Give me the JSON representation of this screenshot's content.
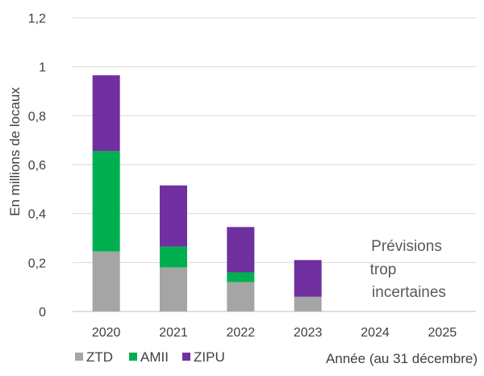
{
  "chart_data": {
    "type": "bar",
    "stacked": true,
    "categories": [
      "2020",
      "2021",
      "2022",
      "2023",
      "2024",
      "2025"
    ],
    "series": [
      {
        "name": "ZTD",
        "values": [
          0.245,
          0.18,
          0.12,
          0.06,
          null,
          null
        ],
        "color": "#a5a5a5"
      },
      {
        "name": "AMII",
        "values": [
          0.41,
          0.085,
          0.04,
          0.0,
          null,
          null
        ],
        "color": "#00b050"
      },
      {
        "name": "ZIPU",
        "values": [
          0.31,
          0.25,
          0.185,
          0.15,
          null,
          null
        ],
        "color": "#7030a0"
      }
    ],
    "ylabel": "En millions de locaux",
    "xlabel": "Année (au 31 décembre)",
    "ylim": [
      0,
      1.2
    ],
    "yticks": [
      0,
      0.2,
      0.4,
      0.6,
      0.8,
      1,
      1.2
    ],
    "ytick_labels": [
      "0",
      "0,2",
      "0,4",
      "0,6",
      "0,8",
      "1",
      "1,2"
    ],
    "grid": true,
    "legend_position": "bottom-left",
    "annotation": [
      "Prévisions",
      "trop",
      "incertaines"
    ]
  }
}
